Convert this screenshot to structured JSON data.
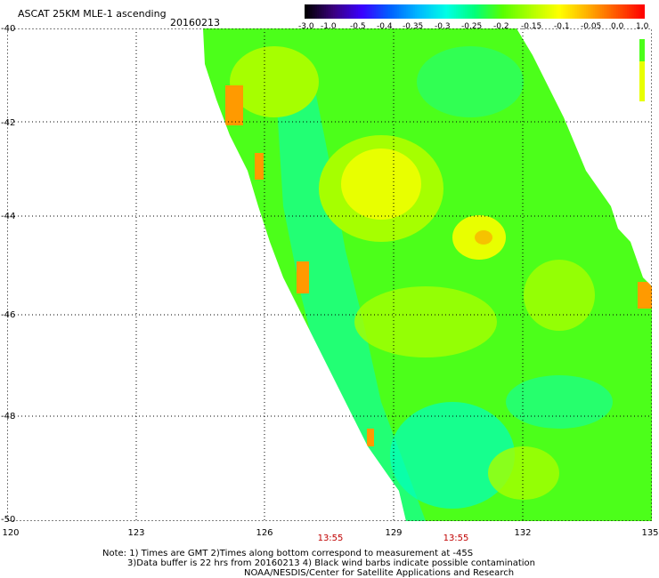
{
  "header": {
    "title": "ASCAT 25KM MLE-1 ascending",
    "date": "20160213"
  },
  "colorbar": {
    "labels": [
      "-3.0",
      "-1.0",
      "-0.5",
      "-0.4",
      "-0.35",
      "-0.3",
      "-0.25",
      "-0.2",
      "-0.15",
      "-0.1",
      "-0.05",
      "0.0",
      "1.0"
    ],
    "stops": [
      "#000000",
      "#3a007f",
      "#3a00ff",
      "#0060ff",
      "#00b8ff",
      "#00ffe6",
      "#00ff7a",
      "#58ff00",
      "#b0ff00",
      "#ffff00",
      "#ffb000",
      "#ff5800",
      "#ff0000"
    ]
  },
  "map": {
    "lon_range": [
      120,
      135
    ],
    "lat_range": [
      -50,
      -40
    ],
    "lon_labels": [
      "120",
      "123",
      "126",
      "129",
      "132",
      "135"
    ],
    "lat_labels": [
      "-40",
      "-42",
      "-44",
      "-46",
      "-48",
      "-50"
    ],
    "time_labels": [
      "13:55",
      "13:55"
    ],
    "swath_colors": {
      "orange": "#ff9a00",
      "yellow": "#e8ff00",
      "lime": "#a6ff00",
      "green": "#4cff1a",
      "cyan": "#00ffc0"
    }
  },
  "notes": {
    "line1": "Note: 1) Times are GMT 2)Times along bottom correspond to measurement at -45S",
    "line2": "3)Data buffer is 22 hrs from 20160213 4) Black wind barbs indicate possible contamination",
    "line3": "NOAA/NESDIS/Center for Satellite Applications and Research"
  }
}
